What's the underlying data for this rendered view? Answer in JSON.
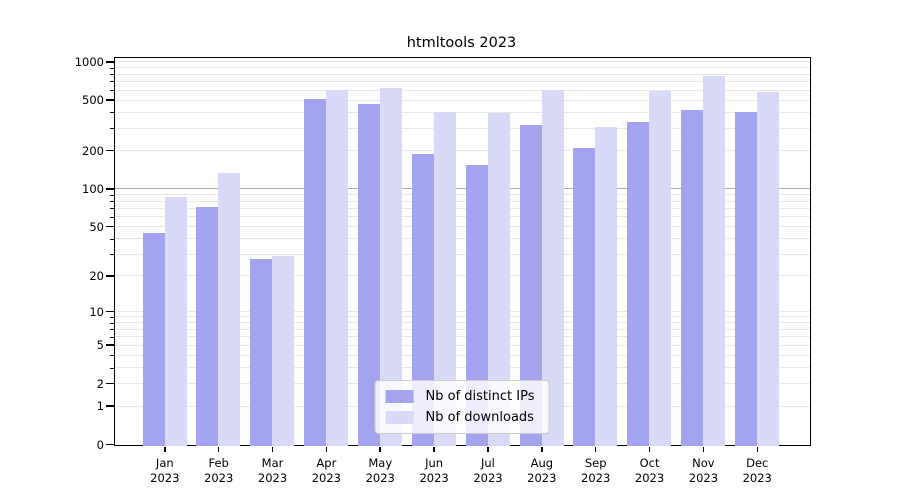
{
  "title": "htmltools 2023",
  "chart_data": {
    "type": "bar",
    "title": "htmltools 2023",
    "categories": [
      "Jan 2023",
      "Feb 2023",
      "Mar 2023",
      "Apr 2023",
      "May 2023",
      "Jun 2023",
      "Jul 2023",
      "Aug 2023",
      "Sep 2023",
      "Oct 2023",
      "Nov 2023",
      "Dec 2023"
    ],
    "series": [
      {
        "name": "Nb of distinct IPs",
        "color": "#a4a4ee",
        "values": [
          44,
          71,
          27,
          505,
          465,
          187,
          153,
          315,
          208,
          335,
          415,
          400
        ]
      },
      {
        "name": "Nb of downloads",
        "color": "#d9d9f8",
        "values": [
          86,
          133,
          29,
          600,
          620,
          398,
          390,
          590,
          307,
          580,
          765,
          577
        ]
      }
    ],
    "xlabel": "",
    "ylabel": "",
    "yscale": "log1p",
    "ylim": [
      0,
      1050
    ],
    "yticks": [
      0,
      1,
      2,
      5,
      10,
      20,
      50,
      100,
      200,
      500,
      1000
    ],
    "minor_gridlines": [
      3,
      4,
      6,
      7,
      8,
      9,
      30,
      40,
      60,
      70,
      80,
      90,
      300,
      400,
      600,
      700,
      800,
      900
    ],
    "emphasized_gridline": 100,
    "grid": true,
    "legend_position": "lower center"
  },
  "legend": {
    "items": [
      {
        "label": "Nb of distinct IPs",
        "color": "#a4a4ee"
      },
      {
        "label": "Nb of downloads",
        "color": "#d9d9f8"
      }
    ]
  },
  "colors": {
    "background": "#ffffff",
    "axis": "#000000",
    "grid_light": "#e8e8e8",
    "grid_emphasis": "#a9a9a9",
    "bar_distinct_ips": "#a4a4ee",
    "bar_downloads": "#d9d9f8",
    "legend_border": "#cccccc"
  }
}
